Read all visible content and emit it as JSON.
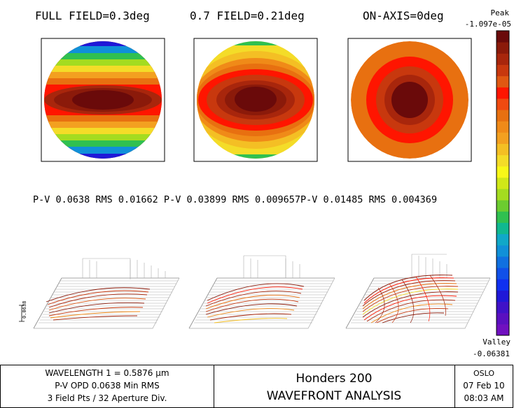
{
  "titles": {
    "full_field": "FULL FIELD=0.3deg",
    "field_07": "0.7 FIELD=0.21deg",
    "on_axis": "ON-AXIS=0deg"
  },
  "colorbar": {
    "peak_label": "Peak",
    "peak_value": "-1.097e-05",
    "valley_label": "Valley",
    "valley_value": "-0.06381",
    "colors": [
      "#6a0a0a",
      "#8b1a0a",
      "#a8260c",
      "#c8380e",
      "#e05812",
      "#ff1500",
      "#f04a10",
      "#e87010",
      "#f08a18",
      "#f3a020",
      "#f4bf24",
      "#f4dc28",
      "#f8f818",
      "#d0e818",
      "#a4dc20",
      "#6ccc30",
      "#30c050",
      "#10b890",
      "#10a8c8",
      "#1090d8",
      "#1070e0",
      "#1050e8",
      "#1030f0",
      "#2018d8",
      "#4012c8",
      "#5a10c0",
      "#7010c0"
    ]
  },
  "stats": {
    "line": "P-V 0.0638 RMS 0.01662 P-V 0.03899 RMS 0.009657P-V 0.01485 RMS 0.004369"
  },
  "scale_marker": "0.0638",
  "footer": {
    "wavelength": "WAVELENGTH 1 = 0.5876 μm",
    "pv_opd": "P-V OPD 0.0638  Min RMS",
    "field_pts": "3 Field Pts / 32 Aperture Div.",
    "lens_name": "Honders 200",
    "analysis": "WAVEFRONT ANALYSIS",
    "program": "OSLO",
    "date": "07 Feb 10",
    "time": "08:03 AM"
  }
}
